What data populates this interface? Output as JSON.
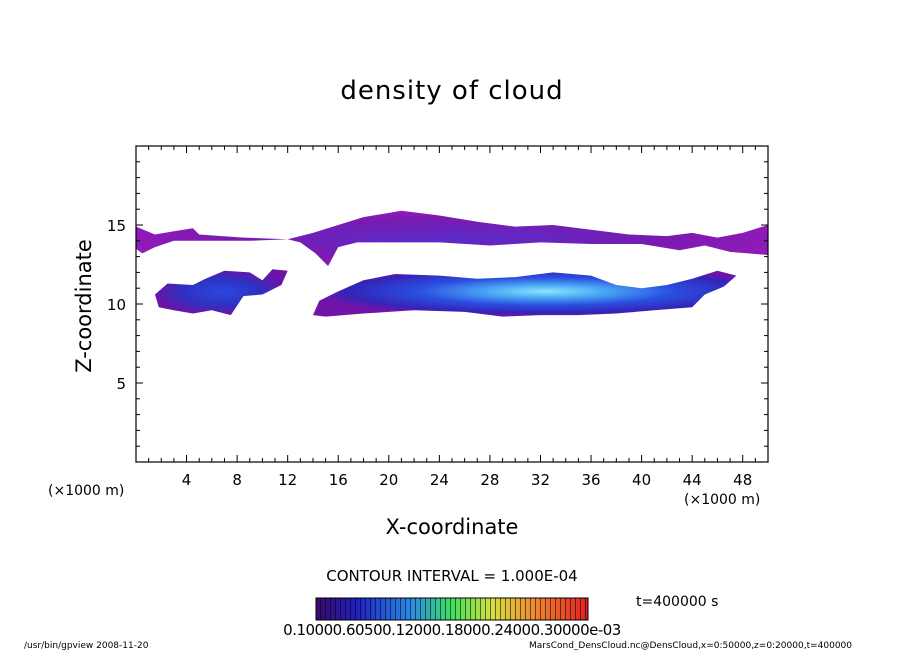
{
  "chart_data": {
    "type": "heatmap",
    "title": "density of cloud",
    "xlabel": "X-coordinate",
    "ylabel": "Z-coordinate",
    "x_unit": "(×1000 m)",
    "xlim": [
      0,
      50
    ],
    "ylim": [
      0,
      20
    ],
    "x_ticks": [
      "4",
      "8",
      "12",
      "16",
      "20",
      "24",
      "28",
      "32",
      "36",
      "40",
      "44",
      "48"
    ],
    "x_tick_values": [
      4,
      8,
      12,
      16,
      20,
      24,
      28,
      32,
      36,
      40,
      44,
      48
    ],
    "y_ticks": [
      "5",
      "10",
      "15"
    ],
    "y_tick_values": [
      5,
      10,
      15
    ],
    "contour_interval": "CONTOUR INTERVAL = 1.000E-04",
    "time_label": "t=400000 s",
    "colorbar_labels": "0.10000.60500.12000.18000.24000.30000e-03",
    "colorbar_range": [
      0.0001,
      0.0007
    ],
    "colors": {
      "low": "#6a0c9a",
      "mid_low": "#2a2ad8",
      "mid": "#3a9af0",
      "high": "#7ee0ff"
    },
    "cloud_regions": [
      {
        "name": "upper-layer",
        "x_range": [
          0,
          50
        ],
        "z_range": [
          13,
          16
        ],
        "peak_x": 21,
        "peak_z": 15.8,
        "level": "low"
      },
      {
        "name": "lower-left-cell",
        "x_range": [
          1.5,
          12
        ],
        "z_range": [
          9.2,
          12.2
        ],
        "level": "mid_low"
      },
      {
        "name": "lower-main-cell",
        "x_range": [
          14,
          45
        ],
        "z_range": [
          9.2,
          12
        ],
        "level": "mid"
      }
    ]
  },
  "footer": {
    "left": "/usr/bin/gpview  2008-11-20",
    "right": "MarsCond_DensCloud.nc@DensCloud,x=0:50000,z=0:20000,t=400000"
  }
}
